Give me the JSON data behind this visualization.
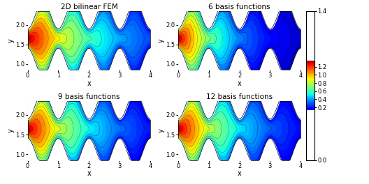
{
  "titles": [
    "2D bilinear FEM",
    "6 basis functions",
    "9 basis functions",
    "12 basis functions"
  ],
  "xlabel": "x",
  "ylabel": "y",
  "xlim": [
    0,
    4
  ],
  "ylim": [
    0.85,
    2.35
  ],
  "yticks": [
    1.0,
    1.5,
    2.0
  ],
  "xticks": [
    0,
    1,
    2,
    3,
    4
  ],
  "colorbar_ticks": [
    0,
    0.2,
    0.4,
    0.6,
    0.8,
    1.0,
    1.2,
    1.4
  ],
  "vmin": 0,
  "vmax": 1.4,
  "num_contours": 50,
  "colormap": "jet",
  "fig_width": 5.28,
  "fig_height": 2.64,
  "dpi": 100,
  "background_color": "#ffffff",
  "title_fontsize": 7.5,
  "label_fontsize": 7,
  "tick_fontsize": 6,
  "nx": 400,
  "ny": 200,
  "y_center": 1.5,
  "channel_mid": 1.5,
  "upper_mean": 2.25,
  "lower_mean": 1.05,
  "wall_amplitude": 0.35,
  "wall_period": 1.0,
  "decay_factors": [
    2.5,
    1.6,
    2.1,
    1.8
  ],
  "spread_factors": [
    0.22,
    0.2,
    0.22,
    0.22
  ],
  "pressure_max": 1.35
}
